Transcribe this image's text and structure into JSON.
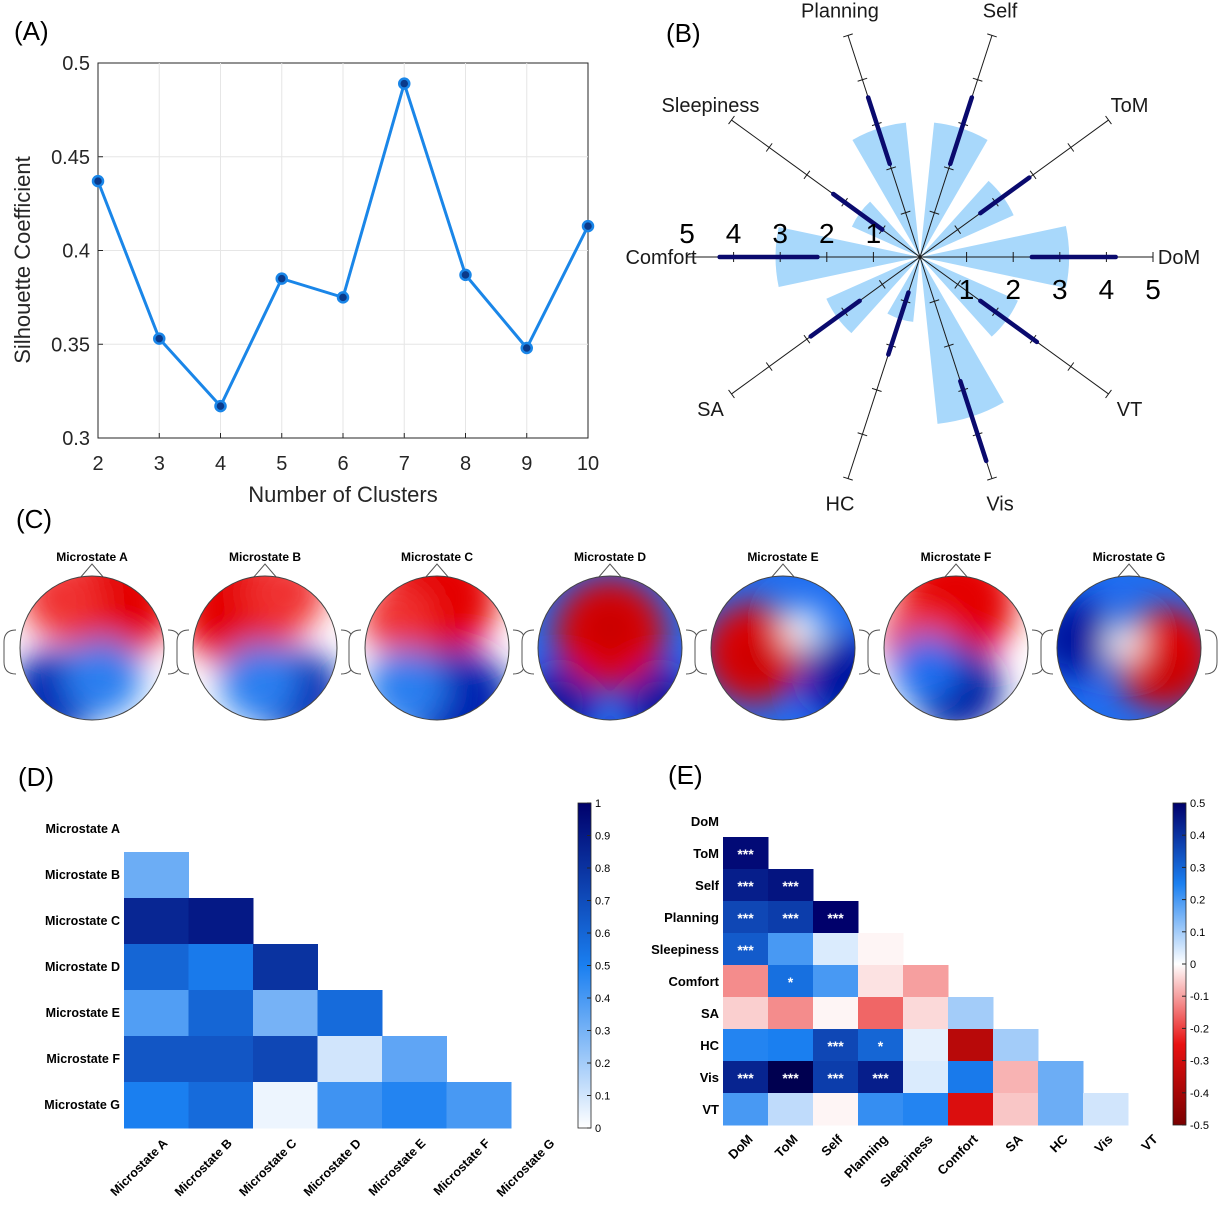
{
  "panels": {
    "a": "(A)",
    "b": "(B)",
    "c": "(C)",
    "d": "(D)",
    "e": "(E)"
  },
  "chart_data": [
    {
      "type": "line",
      "panel": "(A)",
      "xlabel": "Number of Clusters",
      "ylabel": "Silhouette Coefficient",
      "x": [
        2,
        3,
        4,
        5,
        6,
        7,
        8,
        9,
        10
      ],
      "values": [
        0.437,
        0.353,
        0.317,
        0.385,
        0.375,
        0.489,
        0.387,
        0.348,
        0.413
      ],
      "xlim": [
        2,
        10
      ],
      "ylim": [
        0.3,
        0.5
      ],
      "yticks": [
        "0.3",
        "0.35",
        "0.4",
        "0.45",
        "0.5"
      ],
      "xticks": [
        "2",
        "3",
        "4",
        "5",
        "6",
        "7",
        "8",
        "9",
        "10"
      ],
      "grid": true,
      "color": "#1a86e8"
    },
    {
      "type": "polar-bar",
      "panel": "(B)",
      "categories": [
        "DoM",
        "ToM",
        "Self",
        "Planning",
        "Sleepiness",
        "Comfort",
        "SA",
        "HC",
        "Vis",
        "VT"
      ],
      "means": [
        3.2,
        2.2,
        2.9,
        2.9,
        1.6,
        3.1,
        2.2,
        1.4,
        3.6,
        2.3
      ],
      "error_low": [
        2.4,
        1.6,
        2.1,
        2.1,
        1.0,
        2.2,
        1.6,
        0.8,
        2.8,
        1.6
      ],
      "error_high": [
        4.2,
        2.9,
        3.6,
        3.6,
        2.3,
        4.3,
        2.9,
        2.2,
        4.6,
        3.1
      ],
      "radial_ticks": [
        "1",
        "2",
        "3",
        "4",
        "5"
      ],
      "rlim": [
        0,
        5
      ],
      "bar_color": "#a8d8fb",
      "error_color": "#0a0a6e"
    },
    {
      "type": "topomap",
      "panel": "(C)",
      "maps": [
        "Microstate A",
        "Microstate B",
        "Microstate C",
        "Microstate D",
        "Microstate E",
        "Microstate F",
        "Microstate G"
      ]
    },
    {
      "type": "heatmap",
      "panel": "(D)",
      "labels": [
        "Microstate A",
        "Microstate B",
        "Microstate C",
        "Microstate D",
        "Microstate E",
        "Microstate F",
        "Microstate G"
      ],
      "values": [
        [],
        [
          0.32
        ],
        [
          0.85,
          0.9
        ],
        [
          0.6,
          0.52,
          0.8
        ],
        [
          0.38,
          0.6,
          0.3,
          0.58
        ],
        [
          0.66,
          0.66,
          0.72,
          0.1,
          0.35
        ],
        [
          0.5,
          0.58,
          0.04,
          0.42,
          0.48,
          0.4
        ]
      ],
      "clim": [
        0,
        1
      ],
      "colorbar_ticks": [
        "0",
        "0.1",
        "0.2",
        "0.3",
        "0.4",
        "0.5",
        "0.6",
        "0.7",
        "0.8",
        "0.9",
        "1"
      ]
    },
    {
      "type": "heatmap",
      "panel": "(E)",
      "labels": [
        "DoM",
        "ToM",
        "Self",
        "Planning",
        "Sleepiness",
        "Comfort",
        "SA",
        "HC",
        "Vis",
        "VT"
      ],
      "values": [
        [],
        [
          0.48
        ],
        [
          0.44,
          0.46
        ],
        [
          0.36,
          0.38,
          0.5
        ],
        [
          0.32,
          0.2,
          0.04,
          -0.01
        ],
        [
          -0.12,
          0.28,
          0.2,
          -0.03,
          -0.1
        ],
        [
          -0.05,
          -0.12,
          -0.01,
          -0.16,
          -0.04,
          0.1
        ],
        [
          0.24,
          0.25,
          0.36,
          0.3,
          0.03,
          -0.36,
          0.1
        ],
        [
          0.43,
          0.55,
          0.38,
          0.44,
          0.04,
          0.26,
          -0.08,
          0.16
        ],
        [
          0.2,
          0.07,
          -0.01,
          0.22,
          0.24,
          -0.28,
          -0.06,
          0.16,
          0.05
        ]
      ],
      "stars": [
        [],
        [
          "***"
        ],
        [
          "***",
          "***"
        ],
        [
          "***",
          "***",
          "***"
        ],
        [
          "***",
          "",
          "",
          ""
        ],
        [
          "",
          "*",
          "",
          "",
          ""
        ],
        [
          "",
          "",
          "",
          "",
          "",
          ""
        ],
        [
          "",
          "",
          "***",
          "*",
          "",
          "",
          ""
        ],
        [
          "***",
          "***",
          "***",
          "***",
          "",
          "",
          "",
          ""
        ],
        [
          "",
          "",
          "",
          "",
          "",
          "",
          "",
          "",
          ""
        ]
      ],
      "clim": [
        -0.5,
        0.5
      ],
      "colorbar_ticks": [
        "-0.5",
        "-0.4",
        "-0.3",
        "-0.2",
        "-0.1",
        "0",
        "0.1",
        "0.2",
        "0.3",
        "0.4",
        "0.5"
      ]
    }
  ]
}
